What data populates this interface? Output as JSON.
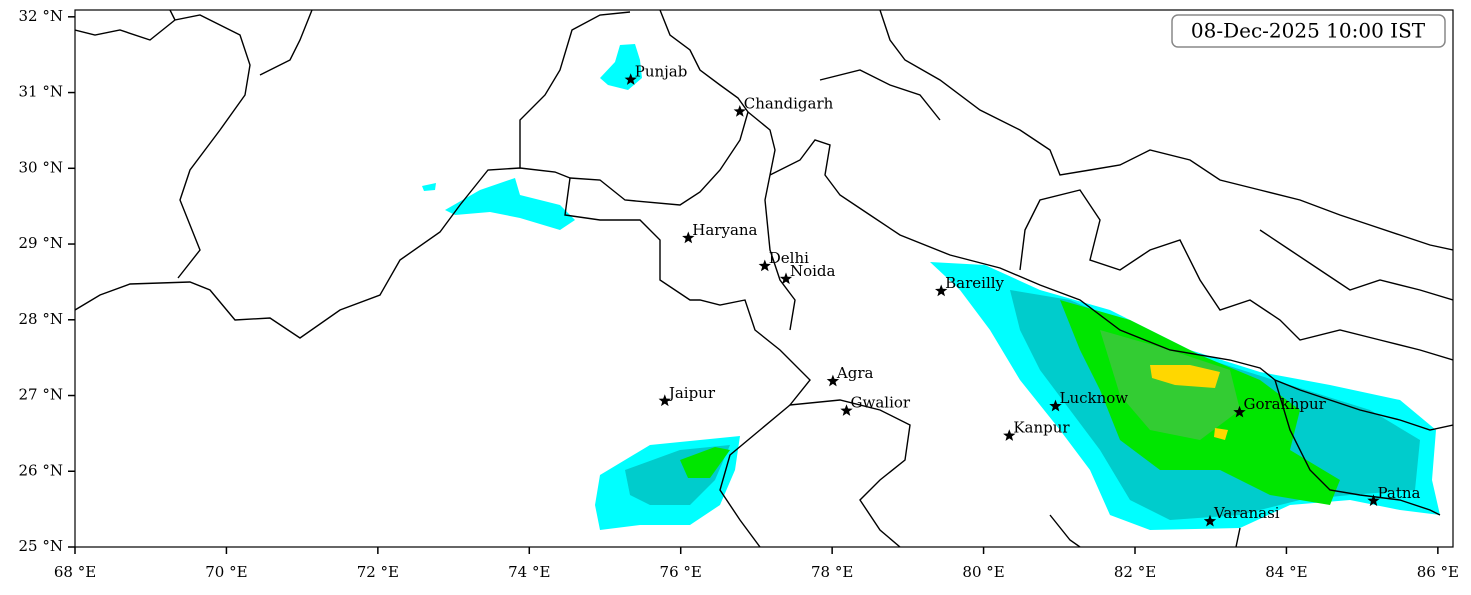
{
  "chart_data": {
    "type": "map",
    "annotation": "08-Dec-2025 10:00 IST",
    "xlim": [
      68,
      86.2
    ],
    "ylim": [
      25,
      32.09
    ],
    "xticks": [
      {
        "value": 68,
        "label": "68 °E"
      },
      {
        "value": 70,
        "label": "70 °E"
      },
      {
        "value": 72,
        "label": "72 °E"
      },
      {
        "value": 74,
        "label": "74 °E"
      },
      {
        "value": 76,
        "label": "76 °E"
      },
      {
        "value": 78,
        "label": "78 °E"
      },
      {
        "value": 80,
        "label": "80 °E"
      },
      {
        "value": 82,
        "label": "82 °E"
      },
      {
        "value": 84,
        "label": "84 °E"
      },
      {
        "value": 86,
        "label": "86 °E"
      }
    ],
    "yticks": [
      {
        "value": 25,
        "label": "25 °N"
      },
      {
        "value": 26,
        "label": "26 °N"
      },
      {
        "value": 27,
        "label": "27 °N"
      },
      {
        "value": 28,
        "label": "28 °N"
      },
      {
        "value": 29,
        "label": "29 °N"
      },
      {
        "value": 30,
        "label": "30 °N"
      },
      {
        "value": 31,
        "label": "31 °N"
      },
      {
        "value": 32,
        "label": "32 °N"
      }
    ],
    "places": [
      {
        "name": "Punjab",
        "lon": 75.34,
        "lat": 31.17
      },
      {
        "name": "Chandigarh",
        "lon": 76.78,
        "lat": 30.75
      },
      {
        "name": "Haryana",
        "lon": 76.1,
        "lat": 29.08
      },
      {
        "name": "Delhi",
        "lon": 77.11,
        "lat": 28.71
      },
      {
        "name": "Noida",
        "lon": 77.39,
        "lat": 28.54
      },
      {
        "name": "Bareilly",
        "lon": 79.44,
        "lat": 28.38
      },
      {
        "name": "Agra",
        "lon": 78.01,
        "lat": 27.19
      },
      {
        "name": "Jaipur",
        "lon": 75.79,
        "lat": 26.93
      },
      {
        "name": "Gwalior",
        "lon": 78.19,
        "lat": 26.8
      },
      {
        "name": "Lucknow",
        "lon": 80.95,
        "lat": 26.86
      },
      {
        "name": "Kanpur",
        "lon": 80.34,
        "lat": 26.47
      },
      {
        "name": "Gorakhpur",
        "lon": 83.38,
        "lat": 26.78
      },
      {
        "name": "Patna",
        "lon": 85.15,
        "lat": 25.61
      },
      {
        "name": "Varanasi",
        "lon": 82.99,
        "lat": 25.34
      }
    ]
  }
}
